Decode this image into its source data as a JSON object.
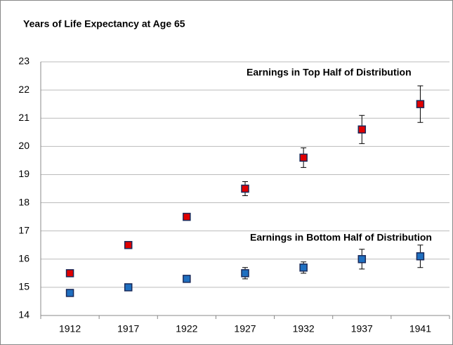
{
  "chart_data": {
    "type": "errorbar",
    "title": "Years of Life Expectancy at Age 65",
    "categories": [
      "1912",
      "1917",
      "1922",
      "1927",
      "1932",
      "1937",
      "1941"
    ],
    "series": [
      {
        "name": "Earnings in Top Half of Distribution",
        "color": "#e00000",
        "values": [
          15.5,
          16.5,
          17.5,
          18.5,
          19.6,
          20.6,
          21.5
        ],
        "errors": [
          0.1,
          0.1,
          0.1,
          0.25,
          0.35,
          0.5,
          0.65
        ]
      },
      {
        "name": "Earnings in Bottom Half of Distribution",
        "color": "#1f6fc0",
        "values": [
          14.8,
          15.0,
          15.3,
          15.5,
          15.7,
          16.0,
          16.1
        ],
        "errors": [
          0.1,
          0.1,
          0.1,
          0.2,
          0.2,
          0.35,
          0.4
        ]
      }
    ],
    "ylim": [
      14,
      23
    ],
    "yticks": [
      14,
      15,
      16,
      17,
      18,
      19,
      20,
      21,
      22,
      23
    ],
    "grid": true
  }
}
